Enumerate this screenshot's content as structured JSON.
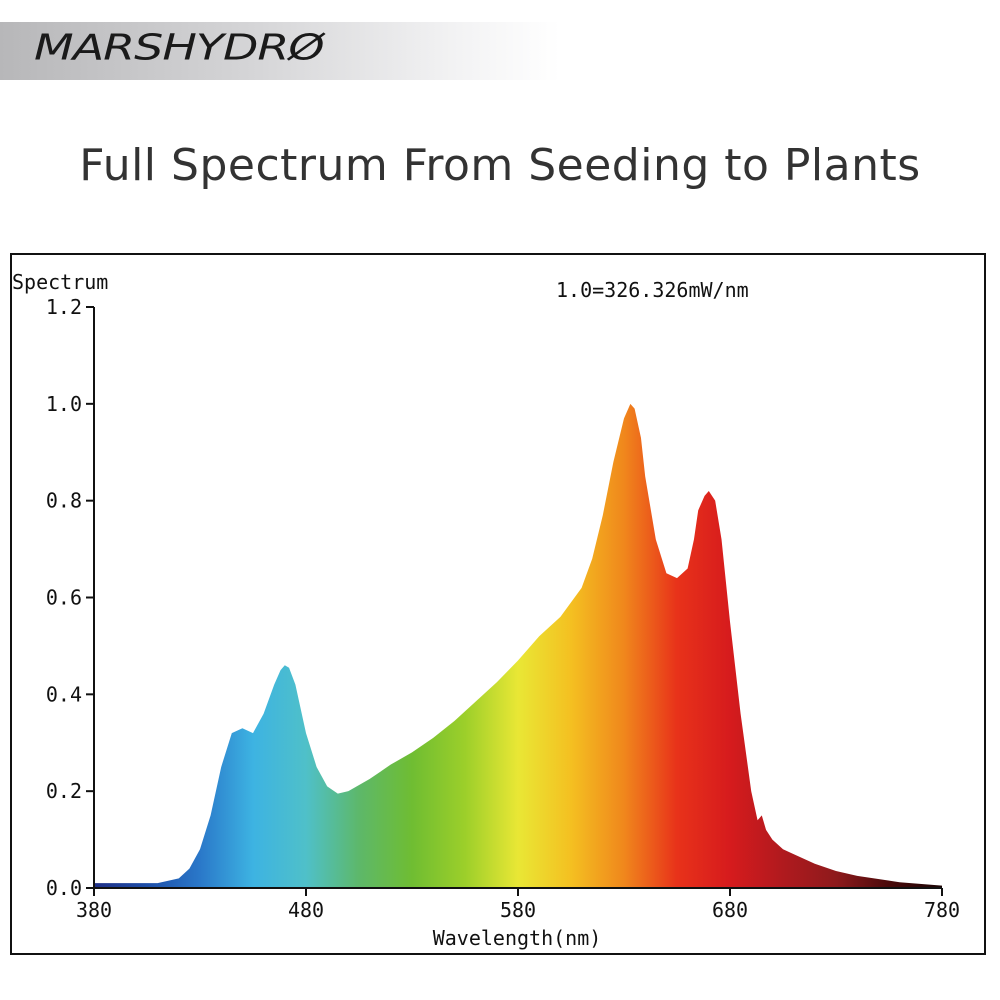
{
  "brand": {
    "logo_text": "MARSHYDRØ"
  },
  "headline": "Full Spectrum From Seeding to Plants",
  "colors": {
    "headline": "#333333",
    "axis": "#111111",
    "spectrum_stops": [
      "#1f2f86",
      "#1d4ea8",
      "#2a78c9",
      "#3db3e2",
      "#4fc0c9",
      "#5db86a",
      "#6fbd32",
      "#9ccf2a",
      "#e9e735",
      "#f4c021",
      "#f0871c",
      "#e8321a",
      "#d61b1d",
      "#b01a1e",
      "#8e1a1c",
      "#4a0a0b",
      "#1a0404"
    ]
  },
  "chart_data": {
    "type": "area",
    "title": "",
    "annotation": "1.0=326.326mW/nm",
    "ylabel": "Spectrum",
    "xlabel": "Wavelength(nm)",
    "xlim": [
      380,
      780
    ],
    "ylim": [
      0,
      1.2
    ],
    "x_ticks": [
      "380",
      "480",
      "580",
      "680",
      "780"
    ],
    "y_ticks": [
      "0.0",
      "0.2",
      "0.4",
      "0.6",
      "0.8",
      "1.0",
      "1.2"
    ],
    "grid": false,
    "legend": "none",
    "x": [
      380,
      410,
      420,
      425,
      430,
      435,
      440,
      445,
      450,
      455,
      460,
      465,
      468,
      470,
      472,
      475,
      480,
      485,
      490,
      495,
      500,
      510,
      520,
      530,
      540,
      550,
      560,
      570,
      580,
      590,
      600,
      610,
      615,
      620,
      625,
      630,
      633,
      635,
      638,
      640,
      645,
      650,
      655,
      660,
      663,
      665,
      668,
      670,
      673,
      676,
      680,
      685,
      690,
      693,
      695,
      697,
      700,
      705,
      710,
      720,
      730,
      740,
      760,
      780
    ],
    "y": [
      0.01,
      0.01,
      0.02,
      0.04,
      0.08,
      0.15,
      0.25,
      0.32,
      0.33,
      0.32,
      0.36,
      0.42,
      0.45,
      0.46,
      0.455,
      0.42,
      0.32,
      0.25,
      0.21,
      0.195,
      0.2,
      0.225,
      0.255,
      0.28,
      0.31,
      0.345,
      0.385,
      0.425,
      0.47,
      0.52,
      0.56,
      0.62,
      0.68,
      0.77,
      0.88,
      0.97,
      1.0,
      0.99,
      0.93,
      0.85,
      0.72,
      0.65,
      0.64,
      0.66,
      0.72,
      0.78,
      0.81,
      0.82,
      0.8,
      0.72,
      0.55,
      0.36,
      0.2,
      0.14,
      0.15,
      0.12,
      0.1,
      0.08,
      0.07,
      0.05,
      0.035,
      0.025,
      0.012,
      0.005
    ]
  }
}
